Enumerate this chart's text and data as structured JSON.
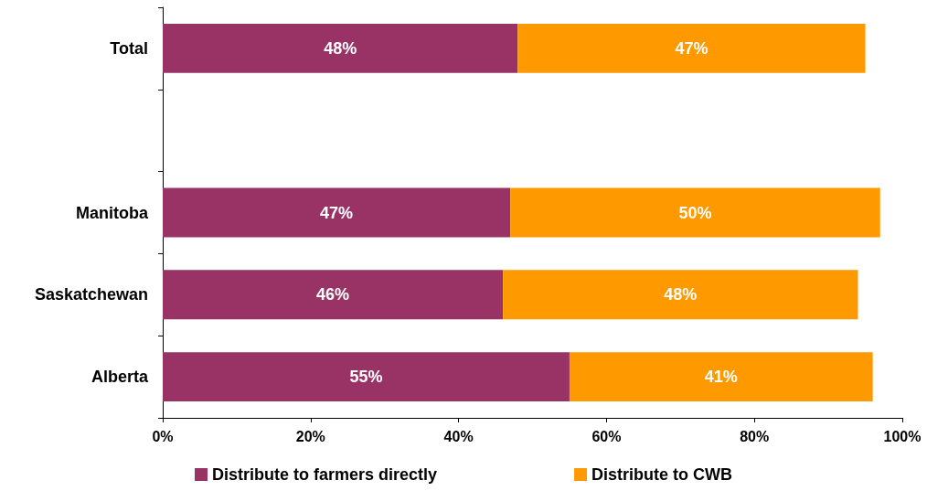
{
  "chart_data": {
    "type": "bar",
    "orientation": "horizontal",
    "stacked": true,
    "categories": [
      "Total",
      null,
      "Manitoba",
      "Saskatchewan",
      "Alberta"
    ],
    "series": [
      {
        "name": "Distribute to farmers directly",
        "color": "#993366",
        "values": [
          48,
          null,
          47,
          46,
          55
        ],
        "value_labels": [
          "48%",
          null,
          "47%",
          "46%",
          "55%"
        ]
      },
      {
        "name": "Distribute to CWB",
        "color": "#ff9900",
        "values": [
          47,
          null,
          50,
          48,
          41
        ],
        "value_labels": [
          "47%",
          null,
          "50%",
          "48%",
          "41%"
        ]
      }
    ],
    "xlim": [
      0,
      100
    ],
    "xticks": [
      {
        "value": 0,
        "label": "0%"
      },
      {
        "value": 20,
        "label": "20%"
      },
      {
        "value": 40,
        "label": "40%"
      },
      {
        "value": 60,
        "label": "60%"
      },
      {
        "value": 80,
        "label": "80%"
      },
      {
        "value": 100,
        "label": "100%"
      }
    ],
    "grid": false,
    "legend": "bottom"
  }
}
